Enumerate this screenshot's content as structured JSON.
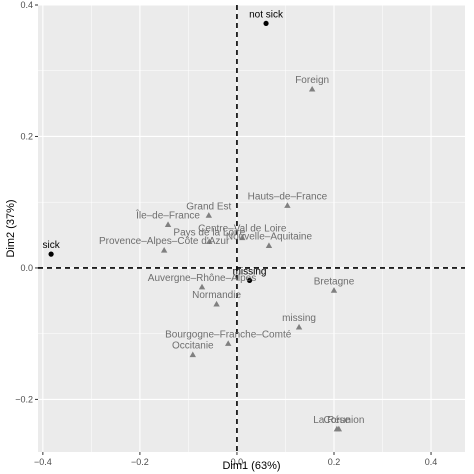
{
  "chart_data": {
    "type": "scatter",
    "title": "",
    "xlabel": "Dim1 (63%)",
    "ylabel": "Dim2 (37%)",
    "xlim": [
      -0.41,
      0.47
    ],
    "ylim": [
      -0.28,
      0.4
    ],
    "xticks": [
      -0.4,
      -0.2,
      0.0,
      0.2,
      0.4
    ],
    "xtick_labels": [
      "−0.4",
      "−0.2",
      "0.0",
      "0.2",
      "0.4"
    ],
    "yticks": [
      -0.2,
      0.0,
      0.2,
      0.4
    ],
    "ytick_labels": [
      "−0.2",
      "0.0",
      "0.2",
      "0.4"
    ],
    "grid": true,
    "background": "#ebebeb",
    "grid_color": "#ffffff",
    "reference_lines": {
      "x": 0.0,
      "y": 0.0,
      "style": "dashed",
      "color": "#000000"
    },
    "series": [
      {
        "marker": "circle",
        "color": "#000000",
        "points": [
          {
            "label": "not sick",
            "x": 0.06,
            "y": 0.372
          },
          {
            "label": "sick",
            "x": -0.383,
            "y": 0.021
          },
          {
            "label": "missing",
            "x": 0.026,
            "y": -0.019
          }
        ]
      },
      {
        "marker": "triangle",
        "color": "#808080",
        "points": [
          {
            "label": "Foreign",
            "x": 0.155,
            "y": 0.272
          },
          {
            "label": "Grand Est",
            "x": -0.058,
            "y": 0.08
          },
          {
            "label": "Hauts–de–France",
            "x": 0.104,
            "y": 0.095
          },
          {
            "label": "Île–de–France",
            "x": -0.142,
            "y": 0.066
          },
          {
            "label": "Centre–Val de Loire",
            "x": 0.011,
            "y": 0.046
          },
          {
            "label": "Pays de la Loire",
            "x": -0.057,
            "y": 0.04
          },
          {
            "label": "Nouvelle–Aquitaine",
            "x": 0.066,
            "y": 0.034
          },
          {
            "label": "Provence–Alpes–Côte d'Azur",
            "x": -0.15,
            "y": 0.027
          },
          {
            "label": "Auvergne–Rhône–Alpes",
            "x": -0.072,
            "y": -0.029
          },
          {
            "label": "Normandie",
            "x": -0.042,
            "y": -0.055
          },
          {
            "label": "Bretagne",
            "x": 0.2,
            "y": -0.034
          },
          {
            "label": "missing",
            "x": 0.128,
            "y": -0.09
          },
          {
            "label": "Bourgogne–Franche–Comté",
            "x": -0.018,
            "y": -0.115
          },
          {
            "label": "Occitanie",
            "x": -0.091,
            "y": -0.132
          },
          {
            "label": "La Réunion",
            "x": 0.21,
            "y": -0.245
          },
          {
            "label": "Corse",
            "x": 0.206,
            "y": -0.245
          }
        ]
      }
    ]
  }
}
